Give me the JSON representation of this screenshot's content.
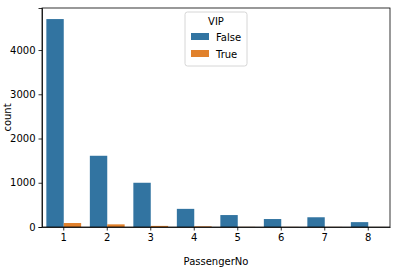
{
  "chart_data": {
    "type": "bar",
    "x_label": "PassengerNo",
    "y_label": "count",
    "legend_title": "VIP",
    "categories": [
      "1",
      "2",
      "3",
      "4",
      "5",
      "6",
      "7",
      "8"
    ],
    "series": [
      {
        "name": "False",
        "color": "#3274a1",
        "values": [
          4700,
          1610,
          1000,
          410,
          270,
          180,
          220,
          110
        ]
      },
      {
        "name": "True",
        "color": "#e1812c",
        "values": [
          90,
          60,
          25,
          15,
          3,
          2,
          2,
          1
        ]
      }
    ],
    "ylim": [
      0,
      4950
    ],
    "yticks": [
      0,
      1000,
      2000,
      3000,
      4000
    ],
    "legend": "top"
  }
}
